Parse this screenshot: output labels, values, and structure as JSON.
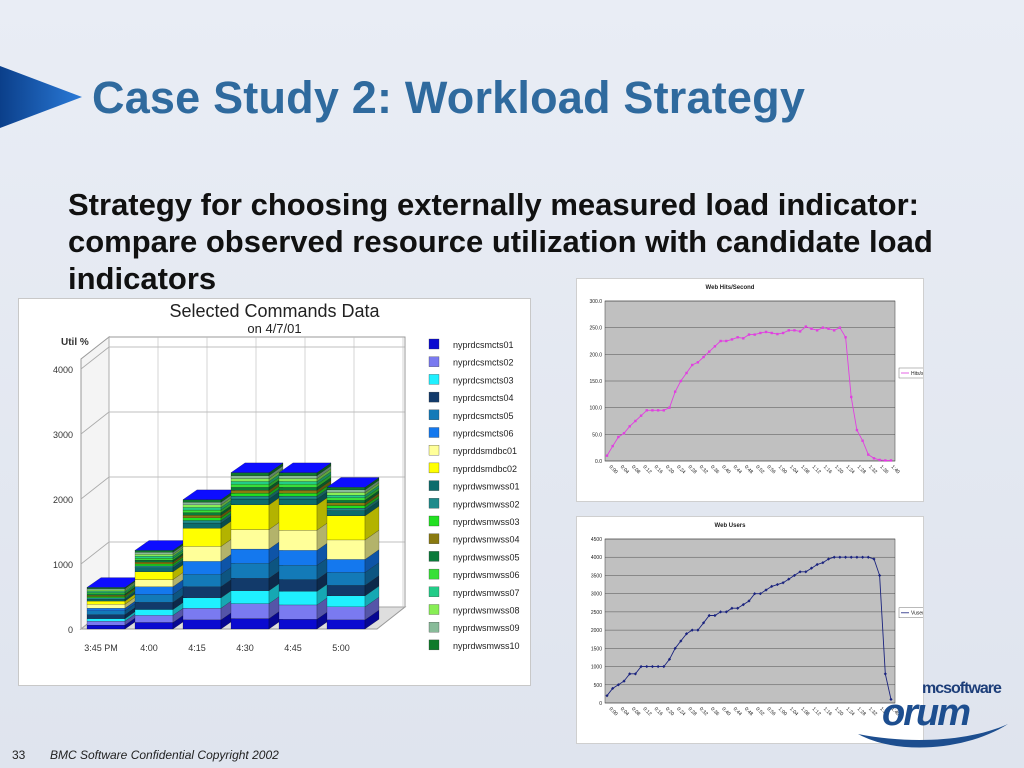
{
  "slide": {
    "title": "Case Study 2: Workload Strategy",
    "body": "Strategy for choosing externally measured load indicator: compare observed resource utilization with candidate load indicators",
    "page_number": "33",
    "footer": "BMC Software Confidential  Copyright 2002",
    "logo_top": "mcsoftware",
    "logo_main": "orum"
  },
  "colors": {
    "title": "#2f6a9e",
    "accent_arrow": "#1f66b8",
    "hits_line": "#e040e0",
    "users_line": "#1a237e",
    "plot_bg": "#c0c0c0"
  },
  "chart_data": [
    {
      "type": "bar",
      "subtype": "3d-stacked",
      "title": "Selected Commands Data",
      "subtitle": "on 4/7/01",
      "ylabel": "Util %",
      "yticks": [
        "0",
        "1000",
        "2000",
        "3000",
        "4000"
      ],
      "ylim": [
        0,
        4000
      ],
      "categories": [
        "3:45 PM",
        "4:00",
        "4:15",
        "4:30",
        "4:45",
        "5:00"
      ],
      "legend_position": "right",
      "series": [
        {
          "name": "nyprdcsmcts01",
          "color": "#0a0ad0",
          "values": [
            60,
            100,
            140,
            160,
            150,
            140
          ]
        },
        {
          "name": "nyprdcsmcts02",
          "color": "#7a7af0",
          "values": [
            60,
            110,
            180,
            230,
            220,
            200
          ]
        },
        {
          "name": "nyprdcsmcts03",
          "color": "#1ff0ff",
          "values": [
            40,
            90,
            160,
            200,
            210,
            170
          ]
        },
        {
          "name": "nyprdcsmcts04",
          "color": "#123a6a",
          "values": [
            60,
            110,
            170,
            190,
            180,
            160
          ]
        },
        {
          "name": "nyprdcsmcts05",
          "color": "#137ab8",
          "values": [
            60,
            120,
            190,
            230,
            220,
            200
          ]
        },
        {
          "name": "nyprdcsmcts06",
          "color": "#1478ee",
          "values": [
            40,
            120,
            200,
            220,
            230,
            200
          ]
        },
        {
          "name": "nyprddsmdbc01",
          "color": "#ffff99",
          "values": [
            60,
            110,
            230,
            300,
            310,
            300
          ]
        },
        {
          "name": "nyprddsmdbc02",
          "color": "#ffff00",
          "values": [
            50,
            120,
            280,
            380,
            390,
            370
          ]
        },
        {
          "name": "nyprdwsmwss01",
          "color": "#0c6c6c",
          "values": [
            30,
            60,
            80,
            90,
            90,
            80
          ]
        },
        {
          "name": "nyprdwsmwss02",
          "color": "#1e8a8a",
          "values": [
            20,
            30,
            40,
            45,
            45,
            40
          ]
        },
        {
          "name": "nyprdwsmwss03",
          "color": "#22e022",
          "values": [
            20,
            30,
            40,
            45,
            45,
            40
          ]
        },
        {
          "name": "nyprdwsmwss04",
          "color": "#8a7a10",
          "values": [
            20,
            30,
            40,
            45,
            45,
            40
          ]
        },
        {
          "name": "nyprdwsmwss05",
          "color": "#0a7a3a",
          "values": [
            20,
            30,
            40,
            45,
            45,
            40
          ]
        },
        {
          "name": "nyprdwsmwss06",
          "color": "#38e038",
          "values": [
            20,
            30,
            40,
            45,
            45,
            40
          ]
        },
        {
          "name": "nyprdwsmwss07",
          "color": "#22cc88",
          "values": [
            20,
            30,
            40,
            45,
            45,
            40
          ]
        },
        {
          "name": "nyprdwsmwss08",
          "color": "#88ee55",
          "values": [
            20,
            30,
            40,
            45,
            45,
            40
          ]
        },
        {
          "name": "nyprdwsmwss09",
          "color": "#88bb99",
          "values": [
            20,
            30,
            40,
            45,
            45,
            40
          ]
        },
        {
          "name": "nyprdwsmwss10",
          "color": "#0f7a2a",
          "values": [
            20,
            30,
            40,
            45,
            45,
            40
          ]
        }
      ]
    },
    {
      "type": "line",
      "title": "Web Hits/Second",
      "yticks": [
        "0.0",
        "50.0",
        "100.0",
        "150.0",
        "200.0",
        "250.0",
        "300.0"
      ],
      "ylim": [
        0,
        300
      ],
      "xticks": [
        "0:00",
        "0:04",
        "0:08",
        "0:12",
        "0:16",
        "0:20",
        "0:24",
        "0:28",
        "0:32",
        "0:36",
        "0:40",
        "0:44",
        "0:48",
        "0:52",
        "0:56",
        "1:00",
        "1:04",
        "1:08",
        "1:12",
        "1:16",
        "1:20",
        "1:24",
        "1:28",
        "1:32",
        "1:36",
        "1:40"
      ],
      "legend_position": "right",
      "series": [
        {
          "name": "Hits/sec",
          "values": [
            10,
            28,
            45,
            52,
            65,
            75,
            85,
            95,
            95,
            95,
            95,
            100,
            130,
            150,
            165,
            180,
            185,
            195,
            205,
            215,
            225,
            225,
            228,
            232,
            230,
            237,
            237,
            240,
            242,
            240,
            238,
            240,
            245,
            245,
            243,
            252,
            248,
            245,
            250,
            248,
            245,
            250,
            232,
            120,
            58,
            38,
            12,
            5,
            2,
            1,
            1
          ]
        }
      ]
    },
    {
      "type": "line",
      "title": "Web Users",
      "yticks": [
        "0",
        "500",
        "1000",
        "1500",
        "2000",
        "2500",
        "3000",
        "3500",
        "4000",
        "4500"
      ],
      "ylim": [
        0,
        4500
      ],
      "xticks": [
        "0:00",
        "0:04",
        "0:08",
        "0:12",
        "0:16",
        "0:20",
        "0:24",
        "0:28",
        "0:32",
        "0:36",
        "0:40",
        "0:44",
        "0:48",
        "0:52",
        "0:56",
        "1:00",
        "1:04",
        "1:08",
        "1:12",
        "1:16",
        "1:20",
        "1:24",
        "1:28",
        "1:32",
        "1:36",
        "1:40"
      ],
      "legend_position": "right",
      "series": [
        {
          "name": "Vusers",
          "values": [
            200,
            400,
            500,
            600,
            800,
            800,
            1000,
            1000,
            1000,
            1000,
            1000,
            1200,
            1500,
            1700,
            1900,
            2000,
            2000,
            2200,
            2400,
            2400,
            2500,
            2500,
            2600,
            2600,
            2700,
            2800,
            3000,
            3000,
            3100,
            3200,
            3250,
            3300,
            3400,
            3500,
            3600,
            3600,
            3700,
            3800,
            3850,
            3950,
            4000,
            4000,
            4000,
            4000,
            4000,
            4000,
            4000,
            3950,
            3500,
            800,
            100
          ]
        }
      ]
    }
  ]
}
